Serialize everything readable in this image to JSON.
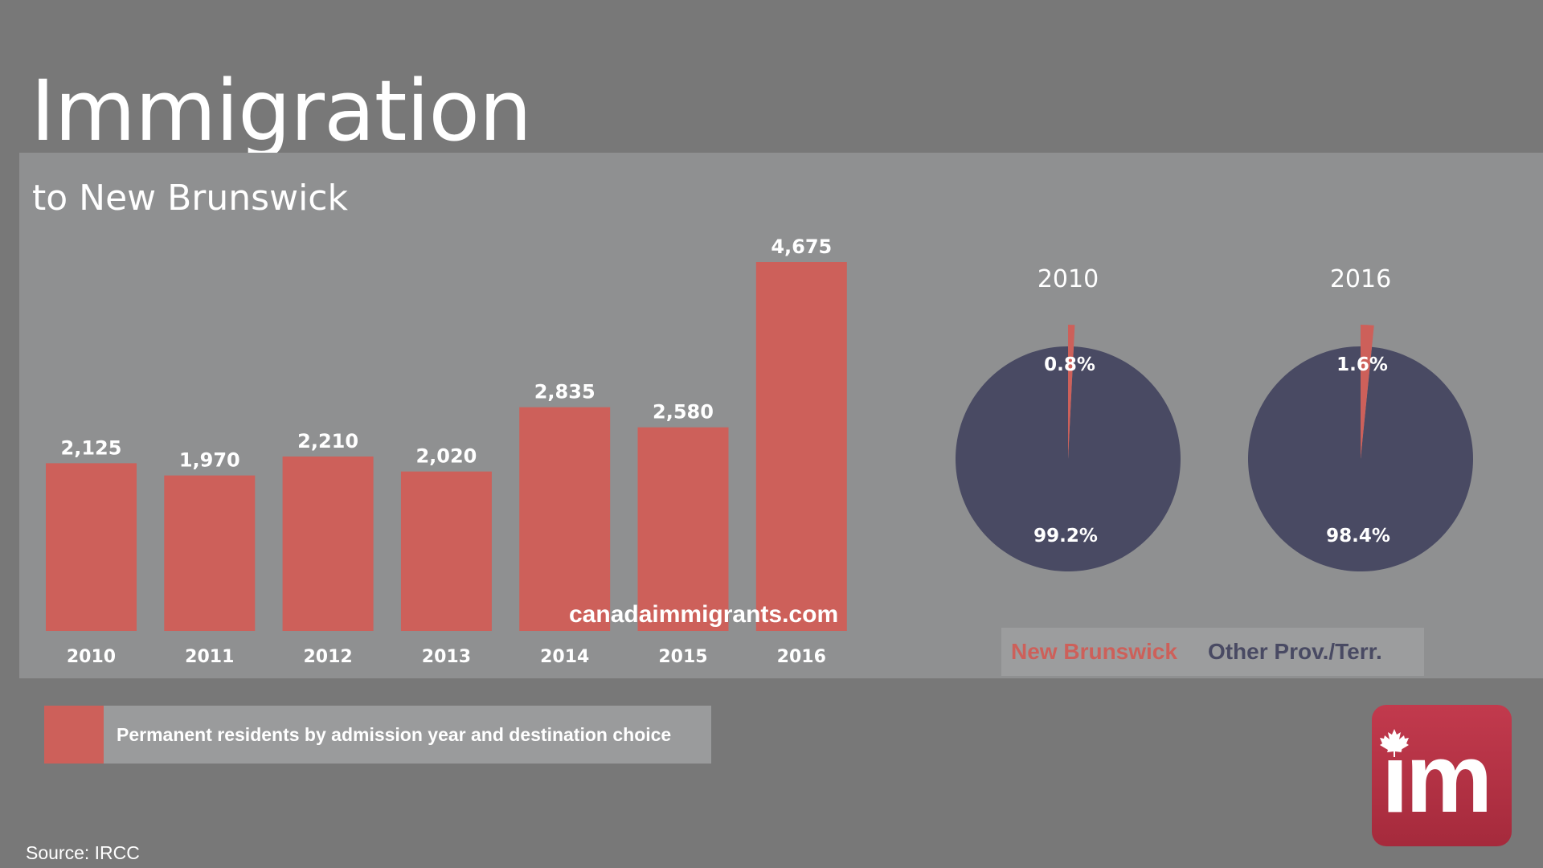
{
  "title": "Immigration",
  "subtitle": "to New Brunswick",
  "watermark": "canadaimmigrants.com",
  "source": "Source: IRCC",
  "logo": {
    "text": "im",
    "icon": "maple-leaf-icon"
  },
  "colors": {
    "bar": "#cd605a",
    "pie_other": "#494a63",
    "pie_nb": "#cd605a",
    "background": "#787878",
    "panel": "#8f9091",
    "logo": "#b8323f"
  },
  "pie_legend": {
    "new_brunswick": "New Brunswick",
    "other": "Other Prov./Terr."
  },
  "series_legend": {
    "label": "Permanent residents by admission year and destination choice"
  },
  "chart_data": [
    {
      "type": "bar",
      "categories": [
        "2010",
        "2011",
        "2012",
        "2013",
        "2014",
        "2015",
        "2016"
      ],
      "values": [
        2125,
        1970,
        2210,
        2020,
        2835,
        2580,
        4675
      ],
      "value_labels": [
        "2,125",
        "1,970",
        "2,210",
        "2,020",
        "2,835",
        "2,580",
        "4,675"
      ],
      "series": [
        {
          "name": "Permanent residents by admission year and destination choice",
          "values": [
            2125,
            1970,
            2210,
            2020,
            2835,
            2580,
            4675
          ]
        }
      ],
      "ylim": [
        0,
        4675
      ],
      "grid": false
    },
    {
      "type": "pie",
      "title": "2010",
      "labels": [
        "New Brunswick",
        "Other Prov./Terr."
      ],
      "values": [
        0.8,
        99.2
      ],
      "value_labels": [
        "0.8%",
        "99.2%"
      ],
      "exploded": "New Brunswick"
    },
    {
      "type": "pie",
      "title": "2016",
      "labels": [
        "New Brunswick",
        "Other Prov./Terr."
      ],
      "values": [
        1.6,
        98.4
      ],
      "value_labels": [
        "1.6%",
        "98.4%"
      ],
      "exploded": "New Brunswick"
    }
  ]
}
